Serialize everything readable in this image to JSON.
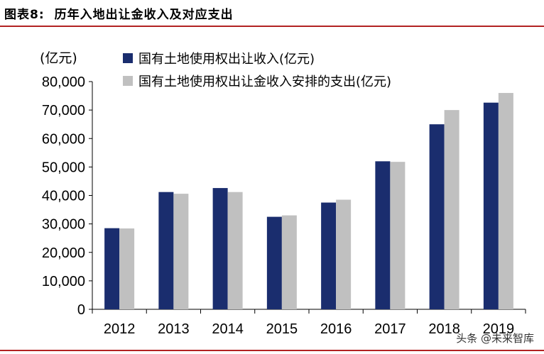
{
  "figure": {
    "label": "图表8:",
    "title": "历年入地出让金收入及对应支出"
  },
  "chart_data": {
    "type": "bar",
    "ylabel": "(亿元)",
    "categories": [
      "2012",
      "2013",
      "2014",
      "2015",
      "2016",
      "2017",
      "2018",
      "2019"
    ],
    "ylim": [
      0,
      80000
    ],
    "yticks": [
      "0",
      "10,000",
      "20,000",
      "30,000",
      "40,000",
      "50,000",
      "60,000",
      "70,000",
      "80,000"
    ],
    "grid": false,
    "legend_position": "top-left",
    "series": [
      {
        "name": "国有土地使用权出让收入(亿元)",
        "color": "#1a2d6e",
        "values": [
          28500,
          41200,
          42600,
          32500,
          37500,
          52000,
          65000,
          72600
        ]
      },
      {
        "name": "国有土地使用权出让金收入安排的支出(亿元)",
        "color": "#c0c0c0",
        "values": [
          28400,
          40600,
          41200,
          33000,
          38500,
          51800,
          70000,
          76000
        ]
      }
    ]
  },
  "watermark": "头条 @未来智库"
}
